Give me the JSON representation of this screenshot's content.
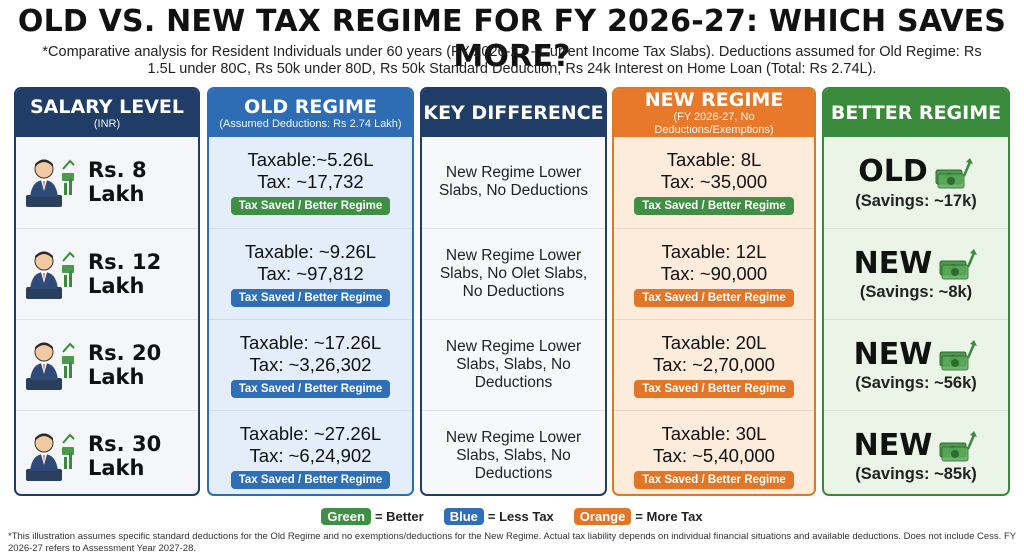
{
  "title": "OLD VS. NEW TAX REGIME FOR FY 2026-27: WHICH SAVES MORE?",
  "subtitle": "*Comparative analysis for Resident Individuals under 60 years (FY 2026-27 - Current Income Tax Slabs). Deductions assumed for Old Regime: Rs 1.5L under 80C, Rs 50k under 80D, Rs 50k Standard Deduction, Rs 24k Interest on Home Loan (Total: Rs 2.74L).",
  "columns": {
    "salary": {
      "title": "SALARY LEVEL",
      "sub": "(INR)"
    },
    "old": {
      "title": "OLD REGIME",
      "sub": "(Assumed Deductions: Rs 2.74 Lakh)"
    },
    "key": {
      "title": "KEY DIFFERENCE"
    },
    "new": {
      "title": "NEW REGIME",
      "sub": "(FY 2026-27, No Deductions/Exemptions)"
    },
    "better": {
      "title": "BETTER REGIME"
    }
  },
  "rows": [
    {
      "salary": "Rs. 8 Lakh",
      "old_taxable": "Taxable:~5.26L",
      "old_tax": "Tax: ~17,732",
      "old_badge": "Tax Saved / Better Regime",
      "key": "New Regime Lower Slabs, No Deductions",
      "new_taxable": "Taxable: 8L",
      "new_tax": "Tax: ~35,000",
      "new_badge": "Tax Saved / Better Regime",
      "better": "OLD",
      "savings": "(Savings: ~17k)"
    },
    {
      "salary": "Rs. 12 Lakh",
      "old_taxable": "Taxable: ~9.26L",
      "old_tax": "Tax: ~97,812",
      "old_badge": "Tax Saved / Better Regime",
      "key": "New Regime Lower Slabs, No Olet Slabs, No Deductions",
      "new_taxable": "Taxable: 12L",
      "new_tax": "Tax: ~90,000",
      "new_badge": "Tax Saved / Better Regime",
      "better": "NEW",
      "savings": "(Savings: ~8k)"
    },
    {
      "salary": "Rs. 20 Lakh",
      "old_taxable": "Taxable: ~17.26L",
      "old_tax": "Tax: ~3,26,302",
      "old_badge": "Tax Saved / Better Regime",
      "key": "New Regime Lower Slabs, Slabs,  No Deductions",
      "new_taxable": "Taxable: 20L",
      "new_tax": "Tax: ~2,70,000",
      "new_badge": "Tax Saved / Better Regime",
      "better": "NEW",
      "savings": "(Savings: ~56k)"
    },
    {
      "salary": "Rs. 30 Lakh",
      "old_taxable": "Taxable: ~27.26L",
      "old_tax": "Tax: ~6,24,902",
      "old_badge": "Tax Saved / Better Regime",
      "key": "New Regime Lower Slabs, Slabs, No Deductions",
      "new_taxable": "Taxable: 30L",
      "new_tax": "Tax: ~5,40,000",
      "new_badge": "Tax Saved / Better Regime",
      "better": "NEW",
      "savings": "(Savings: ~85k)"
    }
  ],
  "legend": [
    {
      "chip": "Green",
      "text": "= Better",
      "color": "#3f8f45"
    },
    {
      "chip": "Blue",
      "text": "= Less Tax",
      "color": "#2f6fb5"
    },
    {
      "chip": "Orange",
      "text": "= More Tax",
      "color": "#e27628"
    }
  ],
  "footnote": "*This illustration assumes specific standard deductions for the Old Regime and no exemptions/deductions for the New Regime. Actual tax liability depends on individual financial situations and available deductions. Does not include Cess. FY 2026-27 refers to Assessment Year 2027-28.",
  "icons": {
    "person": "businessman-icon",
    "money": "money-growth-icon"
  }
}
